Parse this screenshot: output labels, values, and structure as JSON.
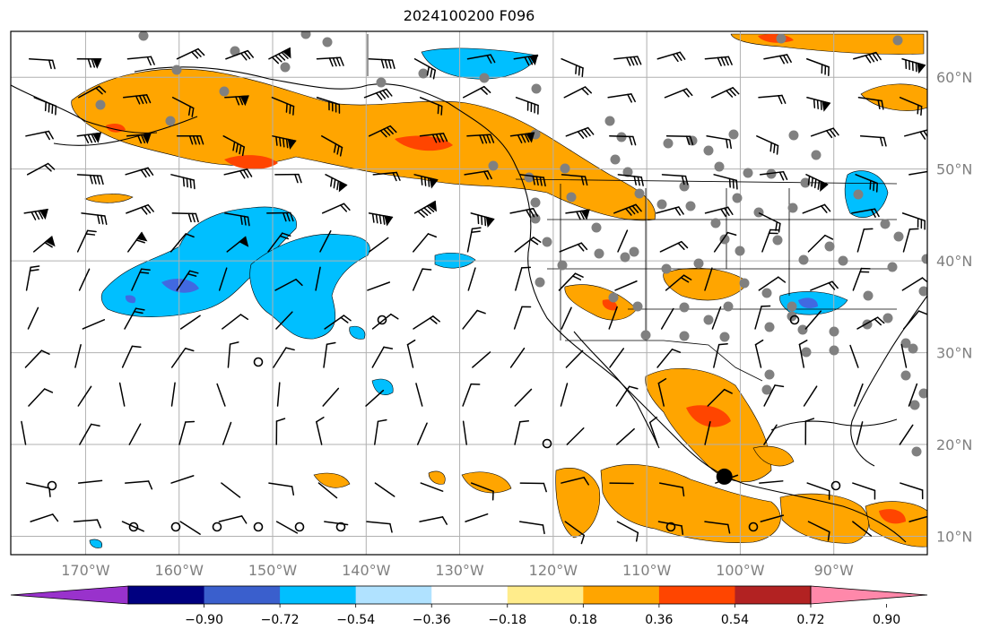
{
  "title": "2024100200 F096",
  "map": {
    "lon_range": [
      -178,
      -80
    ],
    "lat_range": [
      8,
      65
    ],
    "lon_ticks": [
      {
        "value": -170,
        "label": "170°W"
      },
      {
        "value": -160,
        "label": "160°W"
      },
      {
        "value": -150,
        "label": "150°W"
      },
      {
        "value": -140,
        "label": "140°W"
      },
      {
        "value": -130,
        "label": "130°W"
      },
      {
        "value": -120,
        "label": "120°W"
      },
      {
        "value": -110,
        "label": "110°W"
      },
      {
        "value": -100,
        "label": "100°W"
      },
      {
        "value": -90,
        "label": "90°W"
      }
    ],
    "lat_ticks": [
      {
        "value": 10,
        "label": "10°N"
      },
      {
        "value": 20,
        "label": "20°N"
      },
      {
        "value": 30,
        "label": "30°N"
      },
      {
        "value": 40,
        "label": "40°N"
      },
      {
        "value": 50,
        "label": "50°N"
      },
      {
        "value": 60,
        "label": "60°N"
      }
    ],
    "grid": true,
    "field_colors": {
      "positive_036": "#ffa500",
      "positive_054": "#ff4500",
      "negative_036": "#00bfff",
      "negative_054": "#4169e1"
    },
    "station_marker_color": "#808080",
    "feature_marker": {
      "lon": -101.7,
      "lat": 16.5,
      "color": "#000000"
    }
  },
  "colorbar": {
    "colors": [
      "#9932cc",
      "#000080",
      "#3a5fcd",
      "#00bfff",
      "#b0e2ff",
      "#ffffff",
      "#ffec8b",
      "#ffa500",
      "#ff4500",
      "#b22222",
      "#ff88aa"
    ],
    "labels": [
      "−0.90",
      "−0.72",
      "−0.54",
      "−0.36",
      "−0.18",
      "0.18",
      "0.36",
      "0.54",
      "0.72",
      "0.90"
    ]
  }
}
